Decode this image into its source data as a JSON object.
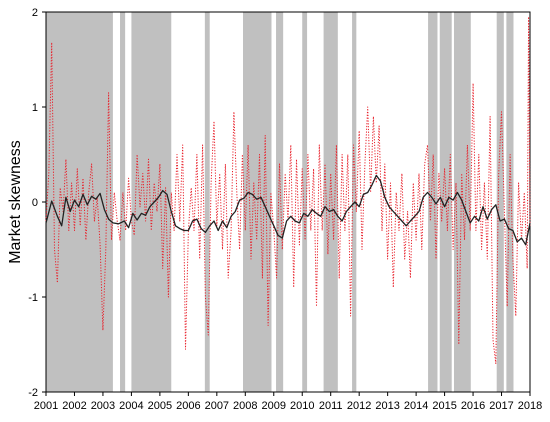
{
  "chart_data": {
    "type": "line",
    "title": "",
    "xlabel": "",
    "ylabel": "Market skewness",
    "xlim": [
      2001,
      2018
    ],
    "ylim": [
      -2,
      2
    ],
    "x_ticks": [
      "2001",
      "2002",
      "2003",
      "2004",
      "2005",
      "2006",
      "2007",
      "2008",
      "2009",
      "2010",
      "2011",
      "2012",
      "2013",
      "2014",
      "2015",
      "2016",
      "2017",
      "2018"
    ],
    "y_ticks": [
      "2",
      "1",
      "0",
      "-1",
      "-2"
    ],
    "grid": false,
    "legend": "none",
    "shaded_periods": [
      [
        2001.0,
        2003.35
      ],
      [
        2003.6,
        2003.78
      ],
      [
        2004.0,
        2005.4
      ],
      [
        2006.58,
        2006.75
      ],
      [
        2007.92,
        2008.92
      ],
      [
        2009.08,
        2009.33
      ],
      [
        2010.0,
        2010.17
      ],
      [
        2010.75,
        2011.25
      ],
      [
        2011.75,
        2011.9
      ],
      [
        2014.42,
        2014.75
      ],
      [
        2014.83,
        2015.25
      ],
      [
        2015.33,
        2015.92
      ],
      [
        2016.83,
        2017.08
      ],
      [
        2017.17,
        2017.42
      ]
    ],
    "series": [
      {
        "style": "solid",
        "color": "#222222",
        "points": [
          [
            2001.0,
            -0.22
          ],
          [
            2001.2,
            0.01
          ],
          [
            2001.4,
            -0.15
          ],
          [
            2001.55,
            -0.25
          ],
          [
            2001.7,
            0.05
          ],
          [
            2001.85,
            -0.1
          ],
          [
            2002.0,
            0.02
          ],
          [
            2002.15,
            -0.05
          ],
          [
            2002.3,
            0.08
          ],
          [
            2002.45,
            -0.03
          ],
          [
            2002.6,
            0.06
          ],
          [
            2002.75,
            0.03
          ],
          [
            2002.9,
            0.09
          ],
          [
            2003.05,
            -0.08
          ],
          [
            2003.2,
            -0.18
          ],
          [
            2003.35,
            -0.22
          ],
          [
            2003.55,
            -0.23
          ],
          [
            2003.75,
            -0.2
          ],
          [
            2003.9,
            -0.27
          ],
          [
            2004.05,
            -0.12
          ],
          [
            2004.2,
            -0.19
          ],
          [
            2004.35,
            -0.12
          ],
          [
            2004.5,
            -0.14
          ],
          [
            2004.65,
            -0.05
          ],
          [
            2004.8,
            0.0
          ],
          [
            2004.95,
            0.05
          ],
          [
            2005.1,
            0.12
          ],
          [
            2005.25,
            0.08
          ],
          [
            2005.4,
            -0.1
          ],
          [
            2005.55,
            -0.25
          ],
          [
            2005.7,
            -0.28
          ],
          [
            2005.85,
            -0.3
          ],
          [
            2006.0,
            -0.3
          ],
          [
            2006.15,
            -0.2
          ],
          [
            2006.3,
            -0.18
          ],
          [
            2006.45,
            -0.28
          ],
          [
            2006.6,
            -0.32
          ],
          [
            2006.75,
            -0.25
          ],
          [
            2006.9,
            -0.2
          ],
          [
            2007.05,
            -0.3
          ],
          [
            2007.2,
            -0.2
          ],
          [
            2007.35,
            -0.27
          ],
          [
            2007.5,
            -0.15
          ],
          [
            2007.65,
            -0.1
          ],
          [
            2007.8,
            0.02
          ],
          [
            2007.95,
            0.04
          ],
          [
            2008.1,
            0.1
          ],
          [
            2008.25,
            0.08
          ],
          [
            2008.4,
            0.03
          ],
          [
            2008.55,
            0.05
          ],
          [
            2008.7,
            -0.05
          ],
          [
            2008.85,
            -0.15
          ],
          [
            2009.0,
            -0.25
          ],
          [
            2009.15,
            -0.35
          ],
          [
            2009.3,
            -0.38
          ],
          [
            2009.45,
            -0.2
          ],
          [
            2009.6,
            -0.15
          ],
          [
            2009.75,
            -0.2
          ],
          [
            2009.9,
            -0.22
          ],
          [
            2010.05,
            -0.12
          ],
          [
            2010.2,
            -0.15
          ],
          [
            2010.35,
            -0.08
          ],
          [
            2010.5,
            -0.12
          ],
          [
            2010.65,
            -0.15
          ],
          [
            2010.8,
            -0.05
          ],
          [
            2010.95,
            -0.1
          ],
          [
            2011.1,
            -0.08
          ],
          [
            2011.25,
            -0.15
          ],
          [
            2011.4,
            -0.2
          ],
          [
            2011.55,
            -0.1
          ],
          [
            2011.7,
            -0.05
          ],
          [
            2011.85,
            0.0
          ],
          [
            2012.0,
            -0.05
          ],
          [
            2012.15,
            0.08
          ],
          [
            2012.3,
            0.1
          ],
          [
            2012.45,
            0.18
          ],
          [
            2012.6,
            0.28
          ],
          [
            2012.75,
            0.22
          ],
          [
            2012.9,
            0.05
          ],
          [
            2013.05,
            -0.05
          ],
          [
            2013.2,
            -0.1
          ],
          [
            2013.35,
            -0.15
          ],
          [
            2013.5,
            -0.2
          ],
          [
            2013.65,
            -0.25
          ],
          [
            2013.8,
            -0.2
          ],
          [
            2013.95,
            -0.15
          ],
          [
            2014.1,
            -0.1
          ],
          [
            2014.25,
            0.05
          ],
          [
            2014.4,
            0.1
          ],
          [
            2014.55,
            0.05
          ],
          [
            2014.7,
            -0.02
          ],
          [
            2014.85,
            0.05
          ],
          [
            2015.0,
            -0.05
          ],
          [
            2015.15,
            0.05
          ],
          [
            2015.3,
            0.02
          ],
          [
            2015.45,
            0.1
          ],
          [
            2015.6,
            0.02
          ],
          [
            2015.75,
            -0.1
          ],
          [
            2015.9,
            -0.22
          ],
          [
            2016.05,
            -0.15
          ],
          [
            2016.2,
            -0.2
          ],
          [
            2016.35,
            -0.05
          ],
          [
            2016.5,
            -0.18
          ],
          [
            2016.65,
            -0.08
          ],
          [
            2016.8,
            -0.03
          ],
          [
            2016.95,
            -0.2
          ],
          [
            2017.1,
            -0.18
          ],
          [
            2017.25,
            -0.28
          ],
          [
            2017.4,
            -0.3
          ],
          [
            2017.55,
            -0.42
          ],
          [
            2017.7,
            -0.38
          ],
          [
            2017.85,
            -0.45
          ],
          [
            2018.0,
            -0.22
          ]
        ]
      },
      {
        "style": "dotted",
        "color": "#e8202a",
        "points": [
          [
            2001.0,
            -0.2
          ],
          [
            2001.1,
            0.3
          ],
          [
            2001.2,
            1.68
          ],
          [
            2001.3,
            -0.5
          ],
          [
            2001.4,
            -0.85
          ],
          [
            2001.5,
            0.15
          ],
          [
            2001.6,
            -0.1
          ],
          [
            2001.7,
            0.45
          ],
          [
            2001.8,
            -0.3
          ],
          [
            2001.9,
            0.2
          ],
          [
            2002.0,
            -0.3
          ],
          [
            2002.1,
            0.35
          ],
          [
            2002.2,
            -0.25
          ],
          [
            2002.3,
            0.25
          ],
          [
            2002.4,
            -0.4
          ],
          [
            2002.5,
            0.1
          ],
          [
            2002.6,
            0.4
          ],
          [
            2002.7,
            -0.2
          ],
          [
            2002.8,
            0.05
          ],
          [
            2002.9,
            -0.45
          ],
          [
            2003.0,
            -1.35
          ],
          [
            2003.1,
            -0.5
          ],
          [
            2003.2,
            1.15
          ],
          [
            2003.3,
            -0.4
          ],
          [
            2003.4,
            0.1
          ],
          [
            2003.5,
            -0.2
          ],
          [
            2003.6,
            -0.4
          ],
          [
            2003.7,
            0.1
          ],
          [
            2003.8,
            -0.3
          ],
          [
            2003.9,
            0.25
          ],
          [
            2004.0,
            -0.2
          ],
          [
            2004.1,
            -0.35
          ],
          [
            2004.2,
            0.5
          ],
          [
            2004.3,
            -0.05
          ],
          [
            2004.4,
            0.3
          ],
          [
            2004.5,
            -0.2
          ],
          [
            2004.6,
            0.45
          ],
          [
            2004.7,
            -0.3
          ],
          [
            2004.8,
            0.2
          ],
          [
            2004.9,
            -0.1
          ],
          [
            2005.0,
            0.4
          ],
          [
            2005.1,
            -0.7
          ],
          [
            2005.2,
            0.15
          ],
          [
            2005.3,
            -1.0
          ],
          [
            2005.4,
            0.1
          ],
          [
            2005.5,
            -0.3
          ],
          [
            2005.6,
            0.5
          ],
          [
            2005.7,
            -0.2
          ],
          [
            2005.8,
            0.6
          ],
          [
            2005.9,
            -1.55
          ],
          [
            2006.0,
            -0.3
          ],
          [
            2006.1,
            0.15
          ],
          [
            2006.2,
            -0.3
          ],
          [
            2006.3,
            0.5
          ],
          [
            2006.4,
            -0.6
          ],
          [
            2006.5,
            0.6
          ],
          [
            2006.6,
            -1.0
          ],
          [
            2006.7,
            -1.4
          ],
          [
            2006.8,
            0.2
          ],
          [
            2006.9,
            0.85
          ],
          [
            2007.0,
            -0.25
          ],
          [
            2007.1,
            0.3
          ],
          [
            2007.2,
            -0.5
          ],
          [
            2007.3,
            0.4
          ],
          [
            2007.4,
            -0.8
          ],
          [
            2007.5,
            -0.3
          ],
          [
            2007.6,
            0.95
          ],
          [
            2007.7,
            0.1
          ],
          [
            2007.8,
            -0.5
          ],
          [
            2007.9,
            0.5
          ],
          [
            2008.0,
            -0.3
          ],
          [
            2008.1,
            0.6
          ],
          [
            2008.2,
            -0.6
          ],
          [
            2008.3,
            0.2
          ],
          [
            2008.4,
            -0.4
          ],
          [
            2008.5,
            0.5
          ],
          [
            2008.6,
            -0.8
          ],
          [
            2008.7,
            0.7
          ],
          [
            2008.8,
            -1.3
          ],
          [
            2008.9,
            0.1
          ],
          [
            2009.0,
            -0.3
          ],
          [
            2009.1,
            -0.8
          ],
          [
            2009.2,
            0.4
          ],
          [
            2009.3,
            -0.5
          ],
          [
            2009.4,
            0.3
          ],
          [
            2009.5,
            -0.2
          ],
          [
            2009.6,
            0.6
          ],
          [
            2009.7,
            -0.9
          ],
          [
            2009.8,
            0.45
          ],
          [
            2009.9,
            -0.45
          ],
          [
            2010.0,
            0.35
          ],
          [
            2010.1,
            -0.4
          ],
          [
            2010.2,
            0.5
          ],
          [
            2010.3,
            -0.3
          ],
          [
            2010.4,
            0.35
          ],
          [
            2010.5,
            -1.1
          ],
          [
            2010.6,
            0.6
          ],
          [
            2010.7,
            -0.3
          ],
          [
            2010.8,
            0.4
          ],
          [
            2010.9,
            -0.55
          ],
          [
            2011.0,
            0.3
          ],
          [
            2011.1,
            -0.4
          ],
          [
            2011.2,
            0.6
          ],
          [
            2011.3,
            -0.8
          ],
          [
            2011.4,
            0.5
          ],
          [
            2011.5,
            -0.3
          ],
          [
            2011.6,
            0.5
          ],
          [
            2011.7,
            -1.2
          ],
          [
            2011.8,
            0.6
          ],
          [
            2011.9,
            -0.1
          ],
          [
            2012.0,
            0.75
          ],
          [
            2012.1,
            -0.5
          ],
          [
            2012.2,
            0.4
          ],
          [
            2012.3,
            1.0
          ],
          [
            2012.4,
            0.1
          ],
          [
            2012.5,
            0.9
          ],
          [
            2012.6,
            0.2
          ],
          [
            2012.7,
            0.8
          ],
          [
            2012.8,
            -0.3
          ],
          [
            2012.9,
            0.4
          ],
          [
            2013.0,
            -0.6
          ],
          [
            2013.1,
            0.2
          ],
          [
            2013.2,
            -0.9
          ],
          [
            2013.3,
            0.1
          ],
          [
            2013.4,
            -0.3
          ],
          [
            2013.5,
            0.3
          ],
          [
            2013.6,
            -0.6
          ],
          [
            2013.7,
            -0.1
          ],
          [
            2013.8,
            -0.8
          ],
          [
            2013.9,
            0.2
          ],
          [
            2014.0,
            -0.4
          ],
          [
            2014.1,
            0.3
          ],
          [
            2014.2,
            -0.5
          ],
          [
            2014.3,
            0.4
          ],
          [
            2014.4,
            0.6
          ],
          [
            2014.5,
            -0.2
          ],
          [
            2014.6,
            0.5
          ],
          [
            2014.7,
            -0.6
          ],
          [
            2014.8,
            0.3
          ],
          [
            2014.9,
            -0.2
          ],
          [
            2015.0,
            0.35
          ],
          [
            2015.1,
            -0.3
          ],
          [
            2015.2,
            0.5
          ],
          [
            2015.3,
            -0.5
          ],
          [
            2015.4,
            0.2
          ],
          [
            2015.5,
            -1.5
          ],
          [
            2015.6,
            0.3
          ],
          [
            2015.7,
            -0.4
          ],
          [
            2015.8,
            0.6
          ],
          [
            2015.9,
            -0.3
          ],
          [
            2016.0,
            1.25
          ],
          [
            2016.1,
            -0.3
          ],
          [
            2016.2,
            0.5
          ],
          [
            2016.3,
            -0.5
          ],
          [
            2016.4,
            0.2
          ],
          [
            2016.5,
            -0.6
          ],
          [
            2016.6,
            0.9
          ],
          [
            2016.7,
            -1.45
          ],
          [
            2016.8,
            -1.7
          ],
          [
            2016.9,
            0.3
          ],
          [
            2017.0,
            0.95
          ],
          [
            2017.1,
            -0.1
          ],
          [
            2017.2,
            -1.1
          ],
          [
            2017.3,
            0.5
          ],
          [
            2017.4,
            -0.6
          ],
          [
            2017.5,
            -1.2
          ],
          [
            2017.6,
            0.2
          ],
          [
            2017.7,
            -0.4
          ],
          [
            2017.8,
            0.1
          ],
          [
            2017.9,
            -0.7
          ],
          [
            2017.95,
            1.95
          ],
          [
            2018.0,
            -0.25
          ]
        ]
      }
    ]
  }
}
